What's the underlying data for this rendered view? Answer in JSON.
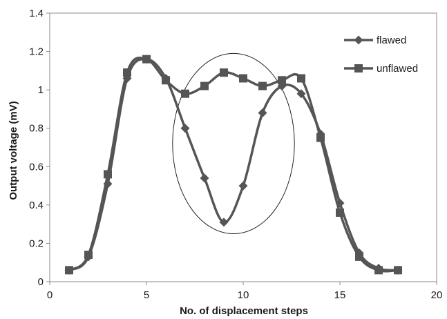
{
  "chart_data": {
    "type": "line",
    "title": "",
    "xlabel": "No. of displacement steps",
    "ylabel": "Output voltage (mV)",
    "xlim": [
      0,
      20
    ],
    "ylim": [
      0,
      1.4
    ],
    "xticks": [
      0,
      5,
      10,
      15,
      20
    ],
    "yticks": [
      0,
      0.2,
      0.4,
      0.6,
      0.8,
      1,
      1.2,
      1.4
    ],
    "xtick_labels": [
      "0",
      "5",
      "10",
      "15",
      "20"
    ],
    "ytick_labels": [
      "0",
      "0.2",
      "0.4",
      "0.6",
      "0.8",
      "1",
      "1.2",
      "1.4"
    ],
    "grid": false,
    "legend_position": "top-right",
    "series": [
      {
        "name": "flawed",
        "marker": "diamond",
        "color": "#555555",
        "x": [
          1,
          2,
          3,
          4,
          5,
          6,
          7,
          8,
          9,
          10,
          11,
          12,
          13,
          14,
          15,
          16,
          17,
          18
        ],
        "y": [
          0.06,
          0.13,
          0.51,
          1.06,
          1.16,
          1.06,
          0.8,
          0.54,
          0.31,
          0.5,
          0.88,
          1.02,
          0.98,
          0.77,
          0.41,
          0.15,
          0.07,
          0.06
        ]
      },
      {
        "name": "unflawed",
        "marker": "square",
        "color": "#555555",
        "x": [
          1,
          2,
          3,
          4,
          5,
          6,
          7,
          8,
          9,
          10,
          11,
          12,
          13,
          14,
          15,
          16,
          17,
          18
        ],
        "y": [
          0.06,
          0.14,
          0.56,
          1.09,
          1.16,
          1.05,
          0.98,
          1.02,
          1.09,
          1.06,
          1.02,
          1.05,
          1.06,
          0.75,
          0.36,
          0.13,
          0.06,
          0.06
        ]
      }
    ],
    "annotations": [
      {
        "type": "ellipse",
        "center": [
          9.5,
          0.72
        ],
        "radius_x": 3.15,
        "radius_y": 0.47
      }
    ]
  }
}
